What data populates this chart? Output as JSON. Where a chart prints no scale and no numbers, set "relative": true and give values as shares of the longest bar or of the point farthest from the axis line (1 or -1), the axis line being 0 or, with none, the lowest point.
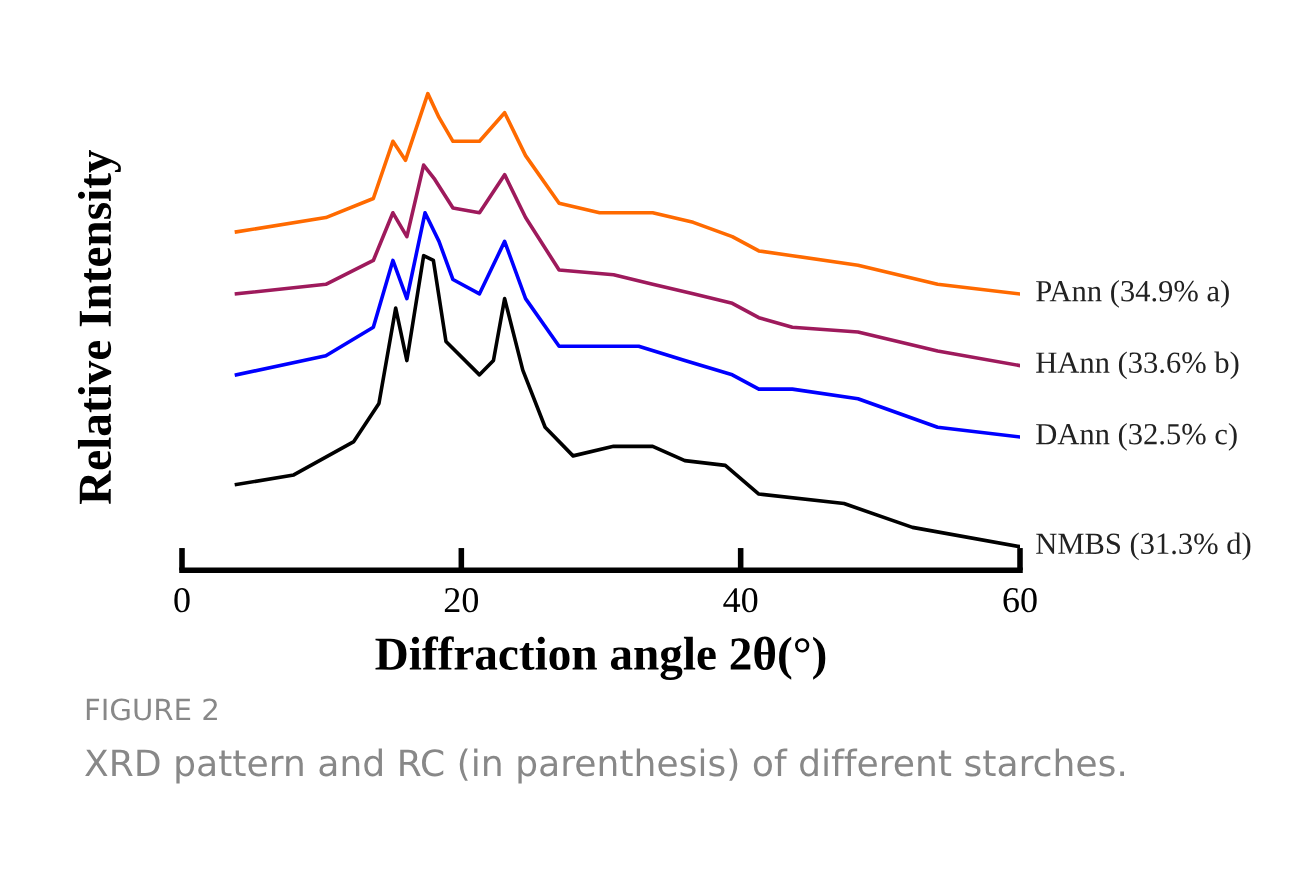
{
  "chart_data": {
    "type": "line",
    "relative": true,
    "xlabel": "Diffraction angle 2θ(°)",
    "ylabel": "Relative Intensity",
    "xlim": [
      0,
      60
    ],
    "xticks": [
      0,
      20,
      40,
      60
    ],
    "grid": false,
    "legend": false,
    "marker": "none",
    "line_style": "solid",
    "tick_labels": "x",
    "annotations": [
      "FIGURE 2",
      "XRD pattern and RC (in parenthesis) of different starches."
    ],
    "series": [
      {
        "name": "PAnn (34.9% a)",
        "color": "#ff6a00",
        "x": [
          3.9,
          10.3,
          13.7,
          15.1,
          16.0,
          17.6,
          18.4,
          19.4,
          21.3,
          23.1,
          24.6,
          27.0,
          29.9,
          33.7,
          36.6,
          39.4,
          41.3,
          43.7,
          48.4,
          54.1,
          59.9
        ],
        "values": [
          0.71,
          0.74,
          0.78,
          0.9,
          0.86,
          1.0,
          0.95,
          0.9,
          0.9,
          0.96,
          0.87,
          0.77,
          0.75,
          0.75,
          0.73,
          0.7,
          0.67,
          0.66,
          0.64,
          0.6,
          0.58
        ]
      },
      {
        "name": "HAnn (33.6% b)",
        "color": "#9e1a5c",
        "x": [
          3.9,
          10.3,
          13.7,
          15.1,
          16.1,
          17.3,
          18.1,
          19.4,
          21.3,
          23.1,
          24.6,
          27.0,
          30.9,
          33.7,
          36.6,
          39.4,
          41.3,
          43.7,
          48.4,
          54.1,
          59.9
        ],
        "values": [
          0.58,
          0.6,
          0.65,
          0.75,
          0.7,
          0.85,
          0.82,
          0.76,
          0.75,
          0.83,
          0.74,
          0.63,
          0.62,
          0.6,
          0.58,
          0.56,
          0.53,
          0.51,
          0.5,
          0.46,
          0.43
        ]
      },
      {
        "name": "DAnn (32.5% c)",
        "color": "#0000ff",
        "x": [
          3.9,
          10.3,
          13.7,
          15.1,
          16.1,
          17.4,
          18.4,
          19.4,
          21.3,
          23.1,
          24.6,
          27.0,
          29.9,
          32.7,
          36.0,
          39.4,
          41.3,
          43.7,
          48.4,
          54.1,
          59.9
        ],
        "values": [
          0.41,
          0.45,
          0.51,
          0.65,
          0.57,
          0.75,
          0.69,
          0.61,
          0.58,
          0.69,
          0.57,
          0.47,
          0.47,
          0.47,
          0.44,
          0.41,
          0.38,
          0.38,
          0.36,
          0.3,
          0.28
        ]
      },
      {
        "name": "NMBS (31.3% d)",
        "color": "#000000",
        "x": [
          3.9,
          8.0,
          12.3,
          14.1,
          15.3,
          16.1,
          17.3,
          18.0,
          18.9,
          21.3,
          22.3,
          23.1,
          24.4,
          26.0,
          28.0,
          30.9,
          33.7,
          36.0,
          38.9,
          41.3,
          47.4,
          52.3,
          59.9
        ],
        "values": [
          0.18,
          0.2,
          0.27,
          0.35,
          0.55,
          0.44,
          0.66,
          0.65,
          0.48,
          0.41,
          0.44,
          0.57,
          0.42,
          0.3,
          0.24,
          0.26,
          0.26,
          0.23,
          0.22,
          0.16,
          0.14,
          0.09,
          0.05
        ]
      }
    ]
  }
}
